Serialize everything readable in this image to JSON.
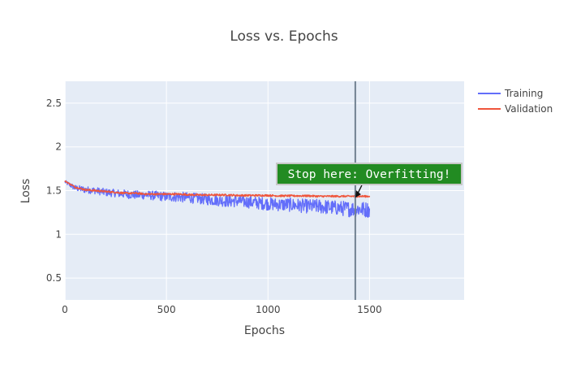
{
  "chart_data": {
    "type": "line",
    "title": "Loss vs. Epochs",
    "xlabel": "Epochs",
    "ylabel": "Loss",
    "xlim": [
      0,
      1966
    ],
    "ylim": [
      0.25,
      2.75
    ],
    "xticks": [
      0,
      500,
      1000,
      1500
    ],
    "yticks": [
      0.5,
      1,
      1.5,
      2,
      2.5
    ],
    "ytick_labels": [
      "0.5",
      "1",
      "1.5",
      "2",
      "2.5"
    ],
    "grid": true,
    "legend_position": "top-right",
    "series": [
      {
        "name": "Training",
        "color": "#636efa",
        "x": [
          0,
          50,
          100,
          150,
          200,
          250,
          300,
          350,
          400,
          450,
          500,
          550,
          600,
          650,
          700,
          750,
          800,
          850,
          900,
          950,
          1000,
          1050,
          1100,
          1150,
          1200,
          1250,
          1300,
          1350,
          1400,
          1450,
          1500
        ],
        "y": [
          1.6,
          1.53,
          1.51,
          1.5,
          1.48,
          1.47,
          1.46,
          1.45,
          1.45,
          1.44,
          1.43,
          1.43,
          1.42,
          1.41,
          1.4,
          1.39,
          1.38,
          1.38,
          1.37,
          1.36,
          1.35,
          1.34,
          1.34,
          1.33,
          1.32,
          1.32,
          1.31,
          1.3,
          1.29,
          1.29,
          1.28
        ],
        "noise": [
          0.02,
          0.035,
          0.04,
          0.04,
          0.045,
          0.045,
          0.05,
          0.05,
          0.05,
          0.055,
          0.055,
          0.06,
          0.06,
          0.06,
          0.065,
          0.065,
          0.07,
          0.07,
          0.07,
          0.075,
          0.075,
          0.075,
          0.08,
          0.08,
          0.08,
          0.085,
          0.085,
          0.085,
          0.09,
          0.09,
          0.09
        ]
      },
      {
        "name": "Validation",
        "color": "#ef553b",
        "x": [
          0,
          50,
          100,
          150,
          200,
          250,
          300,
          350,
          400,
          450,
          500,
          550,
          600,
          650,
          700,
          750,
          800,
          850,
          900,
          950,
          1000,
          1050,
          1100,
          1150,
          1200,
          1250,
          1300,
          1350,
          1400,
          1450,
          1500
        ],
        "y": [
          1.61,
          1.54,
          1.51,
          1.5,
          1.49,
          1.48,
          1.47,
          1.47,
          1.46,
          1.46,
          1.46,
          1.46,
          1.455,
          1.45,
          1.45,
          1.45,
          1.45,
          1.445,
          1.445,
          1.445,
          1.445,
          1.44,
          1.44,
          1.44,
          1.44,
          1.435,
          1.435,
          1.435,
          1.435,
          1.435,
          1.435
        ],
        "noise": [
          0.005,
          0.01,
          0.01,
          0.01,
          0.01,
          0.01,
          0.01,
          0.01,
          0.01,
          0.01,
          0.01,
          0.01,
          0.01,
          0.01,
          0.01,
          0.01,
          0.01,
          0.01,
          0.01,
          0.01,
          0.01,
          0.01,
          0.01,
          0.01,
          0.01,
          0.01,
          0.01,
          0.01,
          0.01,
          0.01,
          0.01
        ]
      }
    ],
    "vline": {
      "x": 1430,
      "color": "#708090"
    },
    "annotation": {
      "text": "Stop here: Overfitting!",
      "x": 1430,
      "y": 1.42,
      "bgcolor": "#228b22",
      "bordercolor": "#c7c7c7"
    }
  }
}
